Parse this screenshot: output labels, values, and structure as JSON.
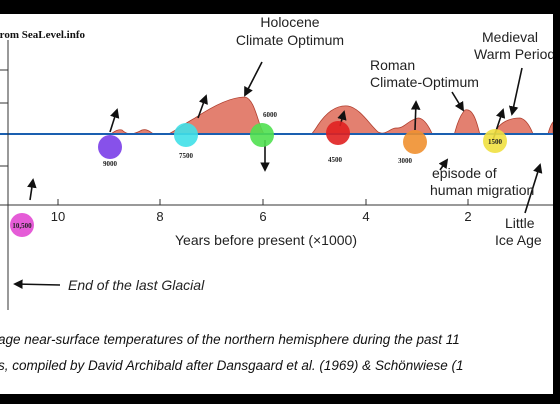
{
  "source": "from SeaLevel.info",
  "annotations": {
    "holocene": [
      "Holocene",
      "Climate Optimum"
    ],
    "roman": [
      "Roman",
      "Climate-Optimum"
    ],
    "medieval": [
      "Medieval",
      "Warm Period"
    ],
    "migration": [
      "episode of",
      "human migration"
    ],
    "little_ice_age": [
      "Little",
      "Ice Age"
    ],
    "glacial": "End of the last Glacial"
  },
  "x_axis": {
    "label": "Years before present (×1000)",
    "ticks": [
      "10",
      "8",
      "6",
      "4",
      "2"
    ]
  },
  "stars": [
    "10,500",
    "9000",
    "7500",
    "6000",
    "4500",
    "3000",
    "1500"
  ],
  "caption": [
    "age near-surface temperatures of the northern hemisphere during the past 11",
    "s, compiled by David Archibald after Dansgaard et al. (1969) & Schönwiese (1"
  ]
}
